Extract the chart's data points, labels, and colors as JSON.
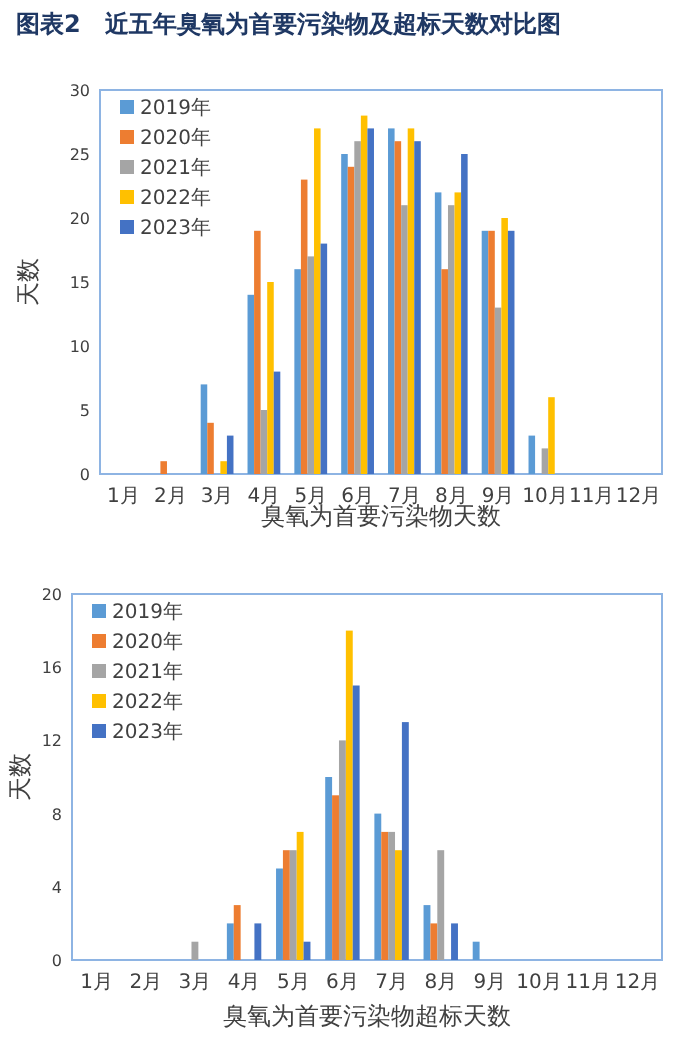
{
  "chart_data": [
    {
      "type": "bar",
      "title": "图表2　近五年臭氧为首要污染物及超标天数对比图",
      "xlabel": "臭氧为首要污染物天数",
      "ylabel": "天数",
      "categories": [
        "1月",
        "2月",
        "3月",
        "4月",
        "5月",
        "6月",
        "7月",
        "8月",
        "9月",
        "10月",
        "11月",
        "12月"
      ],
      "ylim": [
        0,
        30
      ],
      "yticks": [
        0,
        5,
        10,
        15,
        20,
        25,
        30
      ],
      "legend": "top left",
      "grid": false,
      "series": [
        {
          "name": "2019年",
          "color": "#5b9bd5",
          "values": [
            0,
            0,
            7,
            14,
            16,
            25,
            27,
            22,
            19,
            3,
            0,
            0
          ]
        },
        {
          "name": "2020年",
          "color": "#ed7d31",
          "values": [
            0,
            1,
            4,
            19,
            23,
            24,
            26,
            16,
            19,
            0,
            0,
            0
          ]
        },
        {
          "name": "2021年",
          "color": "#a5a5a5",
          "values": [
            0,
            0,
            0,
            5,
            17,
            26,
            21,
            21,
            13,
            2,
            0,
            0
          ]
        },
        {
          "name": "2022年",
          "color": "#ffc000",
          "values": [
            0,
            0,
            1,
            15,
            27,
            28,
            27,
            22,
            20,
            6,
            0,
            0
          ]
        },
        {
          "name": "2023年",
          "color": "#4472c4",
          "values": [
            0,
            0,
            3,
            8,
            18,
            27,
            26,
            25,
            19,
            0,
            0,
            0
          ]
        }
      ]
    },
    {
      "type": "bar",
      "xlabel": "臭氧为首要污染物超标天数",
      "ylabel": "天数",
      "categories": [
        "1月",
        "2月",
        "3月",
        "4月",
        "5月",
        "6月",
        "7月",
        "8月",
        "9月",
        "10月",
        "11月",
        "12月"
      ],
      "ylim": [
        0,
        20
      ],
      "yticks": [
        0,
        4,
        8,
        12,
        16,
        20
      ],
      "legend": "top left",
      "grid": false,
      "series": [
        {
          "name": "2019年",
          "color": "#5b9bd5",
          "values": [
            0,
            0,
            0,
            2,
            5,
            10,
            8,
            3,
            1,
            0,
            0,
            0
          ]
        },
        {
          "name": "2020年",
          "color": "#ed7d31",
          "values": [
            0,
            0,
            0,
            3,
            6,
            9,
            7,
            2,
            0,
            0,
            0,
            0
          ]
        },
        {
          "name": "2021年",
          "color": "#a5a5a5",
          "values": [
            0,
            0,
            1,
            0,
            6,
            12,
            7,
            6,
            0,
            0,
            0,
            0
          ]
        },
        {
          "name": "2022年",
          "color": "#ffc000",
          "values": [
            0,
            0,
            0,
            0,
            7,
            18,
            6,
            0,
            0,
            0,
            0,
            0
          ]
        },
        {
          "name": "2023年",
          "color": "#4472c4",
          "values": [
            0,
            0,
            0,
            2,
            1,
            15,
            13,
            2,
            0,
            0,
            0,
            0
          ]
        }
      ]
    }
  ]
}
